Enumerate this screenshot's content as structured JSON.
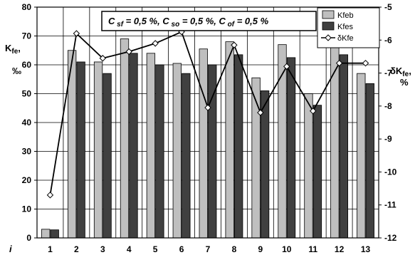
{
  "chart_data": {
    "type": "bar",
    "title": "",
    "annotation": "C sf = 0,5 %, C so = 0,5 %, C of = 0,5 %",
    "annotation_parts": [
      {
        "text": "C",
        "sub": "sf",
        "rest": " = 0,5 %, "
      },
      {
        "text": "C",
        "sub": "so",
        "rest": " = 0,5 %, "
      },
      {
        "text": "C",
        "sub": "of",
        "rest": " = 0,5 %"
      }
    ],
    "xlabel": "i",
    "ylabel_left": {
      "main": "K",
      "sub": "fe",
      "suffix": ",",
      "unit": "‰"
    },
    "ylabel_right": {
      "main": "δK",
      "sub": "fe",
      "suffix": ",",
      "unit": "%"
    },
    "categories": [
      "1",
      "2",
      "3",
      "4",
      "5",
      "6",
      "7",
      "8",
      "9",
      "10",
      "11",
      "12",
      "13"
    ],
    "ylim_left": [
      0,
      80
    ],
    "yticks_left": [
      0,
      10,
      20,
      30,
      40,
      50,
      60,
      70,
      80
    ],
    "ylim_right": [
      -12,
      -5
    ],
    "yticks_right": [
      -12,
      -11,
      -10,
      -9,
      -8,
      -7,
      -6,
      -5
    ],
    "grid": true,
    "legend_position": "top-right",
    "series": [
      {
        "name": "Kfeb",
        "axis": "left",
        "kind": "bar",
        "color": "#bfbfbf",
        "values": [
          3,
          65,
          61,
          69,
          64,
          60.5,
          65.5,
          68,
          55.5,
          67,
          50,
          68.5,
          57
        ]
      },
      {
        "name": "Kfes",
        "axis": "left",
        "kind": "bar",
        "color": "#404040",
        "values": [
          2.8,
          61,
          57,
          64,
          60,
          57,
          60,
          63.5,
          51,
          62.5,
          46,
          63.5,
          53.5
        ]
      },
      {
        "name": "δKfe",
        "axis": "right",
        "kind": "line",
        "color": "#000000",
        "values": [
          -10.7,
          -5.8,
          -6.55,
          -6.35,
          -6.1,
          -5.75,
          -8.05,
          -6.15,
          -8.2,
          -6.8,
          -8.15,
          -6.7,
          -6.7
        ]
      }
    ]
  }
}
